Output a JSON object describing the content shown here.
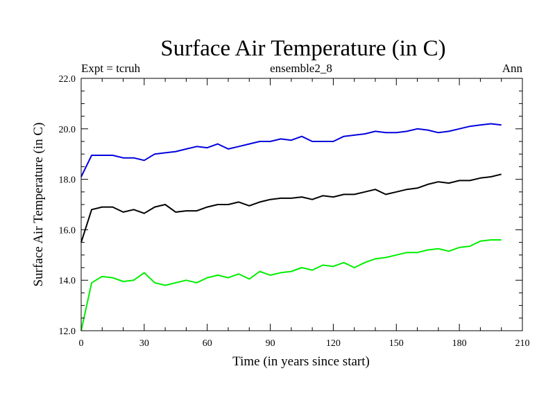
{
  "chart_data": {
    "type": "line",
    "title": "Surface Air Temperature (in C)",
    "subtitle_left": "Expt = tcruh",
    "subtitle_center": "ensemble2_8",
    "subtitle_right": "Ann",
    "xlabel": "Time (in years since start)",
    "ylabel": "Surface Air Temperature (in C)",
    "xlim": [
      0,
      210
    ],
    "ylim": [
      12.0,
      22.0
    ],
    "x_ticks": [
      0,
      30,
      60,
      90,
      120,
      150,
      180,
      210
    ],
    "x_tick_labels": [
      "0",
      "30",
      "60",
      "90",
      "120",
      "150",
      "180",
      "210"
    ],
    "y_ticks": [
      12,
      14,
      16,
      18,
      20,
      22
    ],
    "y_tick_labels": [
      "12.0",
      "14.0",
      "16.0",
      "18.0",
      "20.0",
      "22.0"
    ],
    "grid": false,
    "x_start": 0,
    "x_step": 5,
    "series": [
      {
        "name": "blue",
        "color": "#0000dd",
        "values": [
          18.1,
          18.95,
          18.95,
          18.95,
          18.85,
          18.85,
          18.75,
          19.0,
          19.05,
          19.1,
          19.2,
          19.3,
          19.25,
          19.4,
          19.2,
          19.3,
          19.4,
          19.5,
          19.5,
          19.6,
          19.55,
          19.7,
          19.5,
          19.5,
          19.5,
          19.7,
          19.75,
          19.8,
          19.9,
          19.85,
          19.85,
          19.9,
          20.0,
          19.95,
          19.85,
          19.9,
          20.0,
          20.1,
          20.15,
          20.2,
          20.15
        ]
      },
      {
        "name": "black",
        "color": "#000000",
        "values": [
          15.5,
          16.8,
          16.9,
          16.9,
          16.7,
          16.8,
          16.65,
          16.9,
          17.0,
          16.7,
          16.75,
          16.75,
          16.9,
          17.0,
          17.0,
          17.1,
          16.95,
          17.1,
          17.2,
          17.25,
          17.25,
          17.3,
          17.2,
          17.35,
          17.3,
          17.4,
          17.4,
          17.5,
          17.6,
          17.4,
          17.5,
          17.6,
          17.65,
          17.8,
          17.9,
          17.85,
          17.95,
          17.95,
          18.05,
          18.1,
          18.2
        ]
      },
      {
        "name": "green",
        "color": "#00ee00",
        "values": [
          12.0,
          13.9,
          14.15,
          14.1,
          13.95,
          14.0,
          14.3,
          13.9,
          13.8,
          13.9,
          14.0,
          13.9,
          14.1,
          14.2,
          14.1,
          14.25,
          14.05,
          14.35,
          14.2,
          14.3,
          14.35,
          14.5,
          14.4,
          14.6,
          14.55,
          14.7,
          14.5,
          14.7,
          14.85,
          14.9,
          15.0,
          15.1,
          15.1,
          15.2,
          15.25,
          15.15,
          15.3,
          15.35,
          15.55,
          15.6,
          15.6
        ]
      }
    ]
  }
}
